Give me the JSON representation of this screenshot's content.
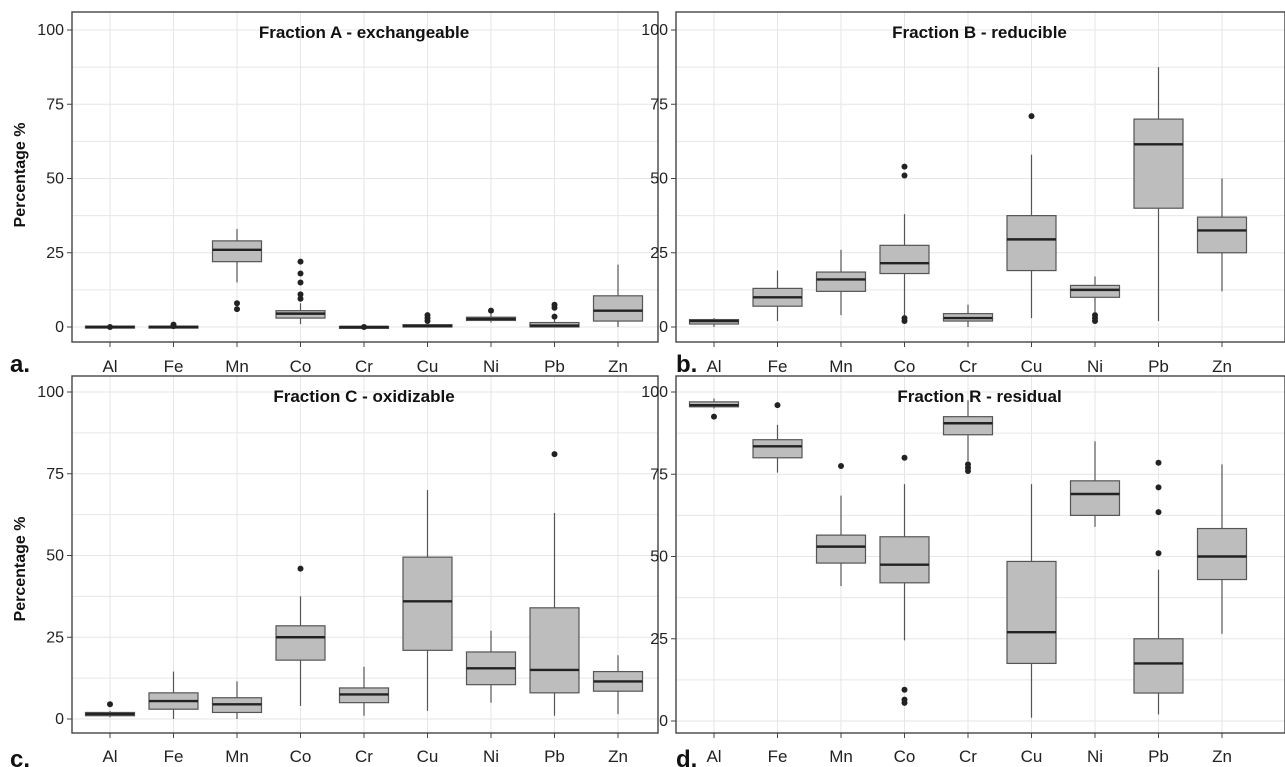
{
  "figure": {
    "y_axis_label": "Percentage %"
  },
  "chart_data": [
    {
      "type": "boxplot",
      "panel_label": "a.",
      "title": "Fraction A - exchangeable",
      "ylabel": "Percentage %",
      "ylim": [
        0,
        100
      ],
      "yticks": [
        0,
        25,
        50,
        75,
        100
      ],
      "grid": true,
      "categories": [
        "Al",
        "Fe",
        "Mn",
        "Co",
        "Cr",
        "Cu",
        "Ni",
        "Pb",
        "Zn"
      ],
      "boxes": [
        {
          "min": 0,
          "q1": 0,
          "median": 0,
          "q3": 0.3,
          "max": 0.3,
          "outliers": [
            0
          ]
        },
        {
          "min": 0,
          "q1": 0,
          "median": 0,
          "q3": 0.3,
          "max": 0.5,
          "outliers": [
            0.3,
            0.8
          ]
        },
        {
          "min": 15,
          "q1": 22,
          "median": 26,
          "q3": 29,
          "max": 33,
          "outliers": [
            8,
            6
          ]
        },
        {
          "min": 1,
          "q1": 3,
          "median": 4.5,
          "q3": 5.5,
          "max": 8,
          "outliers": [
            9.5,
            11,
            15,
            18,
            22
          ]
        },
        {
          "min": 0,
          "q1": 0,
          "median": 0,
          "q3": 0.2,
          "max": 0.3,
          "outliers": [
            0
          ]
        },
        {
          "min": 0,
          "q1": 0,
          "median": 0.3,
          "q3": 0.8,
          "max": 1.5,
          "outliers": [
            2,
            3,
            4
          ]
        },
        {
          "min": 1.5,
          "q1": 2.2,
          "median": 2.7,
          "q3": 3.3,
          "max": 4.5,
          "outliers": [
            5.5
          ]
        },
        {
          "min": 0,
          "q1": 0,
          "median": 0.5,
          "q3": 1.5,
          "max": 2.5,
          "outliers": [
            3.5,
            6.5,
            7.5
          ]
        },
        {
          "min": 0,
          "q1": 2,
          "median": 5.5,
          "q3": 10.5,
          "max": 21,
          "outliers": []
        }
      ]
    },
    {
      "type": "boxplot",
      "panel_label": "b.",
      "title": "Fraction B - reducible",
      "ylabel": "",
      "ylim": [
        0,
        100
      ],
      "yticks": [
        0,
        25,
        50,
        75,
        100
      ],
      "grid": true,
      "categories": [
        "Al",
        "Fe",
        "Mn",
        "Co",
        "Cr",
        "Cu",
        "Ni",
        "Pb",
        "Zn"
      ],
      "boxes": [
        {
          "min": 0,
          "q1": 1,
          "median": 2,
          "q3": 2.5,
          "max": 3,
          "outliers": []
        },
        {
          "min": 2,
          "q1": 7,
          "median": 10,
          "q3": 13,
          "max": 19,
          "outliers": []
        },
        {
          "min": 4,
          "q1": 12,
          "median": 16,
          "q3": 18.5,
          "max": 26,
          "outliers": []
        },
        {
          "min": 4,
          "q1": 18,
          "median": 21.5,
          "q3": 27.5,
          "max": 38,
          "outliers": [
            2,
            3,
            51,
            54
          ]
        },
        {
          "min": 0,
          "q1": 2,
          "median": 3,
          "q3": 4.5,
          "max": 7.5,
          "outliers": []
        },
        {
          "min": 3,
          "q1": 19,
          "median": 29.5,
          "q3": 37.5,
          "max": 58,
          "outliers": [
            71
          ]
        },
        {
          "min": 5,
          "q1": 10,
          "median": 12.5,
          "q3": 14,
          "max": 17,
          "outliers": [
            2,
            3,
            4
          ]
        },
        {
          "min": 2,
          "q1": 40,
          "median": 61.5,
          "q3": 70,
          "max": 87.5,
          "outliers": []
        },
        {
          "min": 12,
          "q1": 25,
          "median": 32.5,
          "q3": 37,
          "max": 50,
          "outliers": []
        }
      ]
    },
    {
      "type": "boxplot",
      "panel_label": "c.",
      "title": "Fraction C - oxidizable",
      "ylabel": "Percentage %",
      "ylim": [
        0,
        100
      ],
      "yticks": [
        0,
        25,
        50,
        75,
        100
      ],
      "grid": true,
      "categories": [
        "Al",
        "Fe",
        "Mn",
        "Co",
        "Cr",
        "Cu",
        "Ni",
        "Pb",
        "Zn"
      ],
      "boxes": [
        {
          "min": 0.5,
          "q1": 1,
          "median": 1.5,
          "q3": 2,
          "max": 2.5,
          "outliers": [
            4.5
          ]
        },
        {
          "min": 0,
          "q1": 3,
          "median": 5.5,
          "q3": 8,
          "max": 14.5,
          "outliers": []
        },
        {
          "min": 0,
          "q1": 2,
          "median": 4.5,
          "q3": 6.5,
          "max": 11.5,
          "outliers": []
        },
        {
          "min": 4,
          "q1": 18,
          "median": 25,
          "q3": 28.5,
          "max": 37.5,
          "outliers": [
            46
          ]
        },
        {
          "min": 1,
          "q1": 5,
          "median": 7.5,
          "q3": 9.5,
          "max": 16,
          "outliers": []
        },
        {
          "min": 2.5,
          "q1": 21,
          "median": 36,
          "q3": 49.5,
          "max": 70,
          "outliers": []
        },
        {
          "min": 5,
          "q1": 10.5,
          "median": 15.5,
          "q3": 20.5,
          "max": 27,
          "outliers": []
        },
        {
          "min": 1,
          "q1": 8,
          "median": 15,
          "q3": 34,
          "max": 63,
          "outliers": [
            81
          ]
        },
        {
          "min": 1.5,
          "q1": 8.5,
          "median": 11.5,
          "q3": 14.5,
          "max": 19.5,
          "outliers": []
        }
      ]
    },
    {
      "type": "boxplot",
      "panel_label": "d.",
      "title": "Fraction R - residual",
      "ylabel": "",
      "ylim": [
        0,
        100
      ],
      "yticks": [
        0,
        25,
        50,
        75,
        100
      ],
      "grid": true,
      "categories": [
        "Al",
        "Fe",
        "Mn",
        "Co",
        "Cr",
        "Cu",
        "Ni",
        "Pb",
        "Zn"
      ],
      "boxes": [
        {
          "min": 95,
          "q1": 95.5,
          "median": 96,
          "q3": 97,
          "max": 98,
          "outliers": [
            92.5
          ]
        },
        {
          "min": 75.5,
          "q1": 80,
          "median": 83.5,
          "q3": 85.5,
          "max": 90,
          "outliers": [
            96
          ]
        },
        {
          "min": 41,
          "q1": 48,
          "median": 53,
          "q3": 56.5,
          "max": 68.5,
          "outliers": [
            77.5
          ]
        },
        {
          "min": 24.5,
          "q1": 42,
          "median": 47.5,
          "q3": 56,
          "max": 72,
          "outliers": [
            9.5,
            6.5,
            5.5,
            80
          ]
        },
        {
          "min": 79,
          "q1": 87,
          "median": 90.5,
          "q3": 92.5,
          "max": 97.5,
          "outliers": [
            76,
            77,
            78
          ]
        },
        {
          "min": 1,
          "q1": 17.5,
          "median": 27,
          "q3": 48.5,
          "max": 72,
          "outliers": []
        },
        {
          "min": 59,
          "q1": 62.5,
          "median": 69,
          "q3": 73,
          "max": 85,
          "outliers": []
        },
        {
          "min": 2,
          "q1": 8.5,
          "median": 17.5,
          "q3": 25,
          "max": 46,
          "outliers": [
            51,
            63.5,
            71,
            78.5
          ]
        },
        {
          "min": 26.5,
          "q1": 43,
          "median": 50,
          "q3": 58.5,
          "max": 78,
          "outliers": []
        }
      ]
    }
  ]
}
